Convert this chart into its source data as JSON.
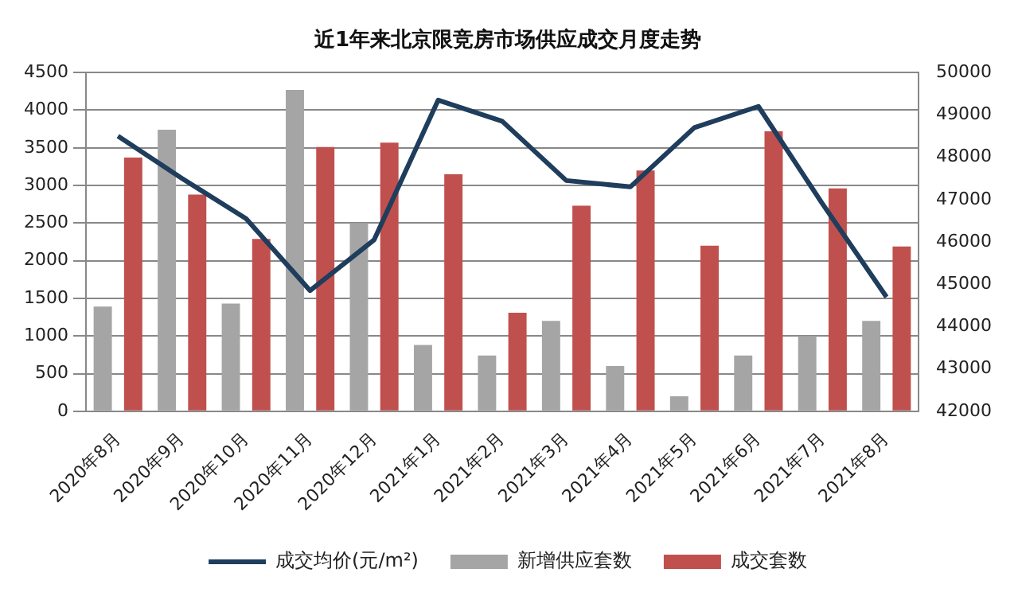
{
  "chart_data": {
    "type": "bar",
    "title": "近1年来北京限竞房市场供应成交月度走势",
    "categories": [
      "2020年8月",
      "2020年9月",
      "2020年10月",
      "2020年11月",
      "2020年12月",
      "2021年1月",
      "2021年2月",
      "2021年3月",
      "2021年4月",
      "2021年5月",
      "2021年6月",
      "2021年7月",
      "2021年8月"
    ],
    "series": [
      {
        "name": "新增供应套数",
        "color": "#a5a5a5",
        "values": [
          1390,
          3740,
          1430,
          4270,
          2500,
          880,
          740,
          1200,
          600,
          200,
          740,
          1000,
          1200
        ]
      },
      {
        "name": "成交套数",
        "color": "#c0504d",
        "values": [
          3370,
          2880,
          2290,
          3510,
          3570,
          3150,
          1310,
          2730,
          3200,
          2200,
          3720,
          2960,
          2190
        ]
      },
      {
        "name": "成交均价(元/m²)",
        "color": "#1f3d5c",
        "type": "line",
        "axis": "y2",
        "values": [
          48500,
          47500,
          46550,
          44850,
          46050,
          49350,
          48850,
          47450,
          47300,
          48700,
          49200,
          46900,
          44700
        ]
      }
    ],
    "ylim": [
      0,
      4500
    ],
    "yticks": [
      0,
      500,
      1000,
      1500,
      2000,
      2500,
      3000,
      3500,
      4000,
      4500
    ],
    "y2lim": [
      42000,
      50000
    ],
    "y2ticks": [
      42000,
      43000,
      44000,
      45000,
      46000,
      47000,
      48000,
      49000,
      50000
    ],
    "grid": "y",
    "legend": "bottom",
    "marker": "none",
    "line_style": "solid"
  }
}
